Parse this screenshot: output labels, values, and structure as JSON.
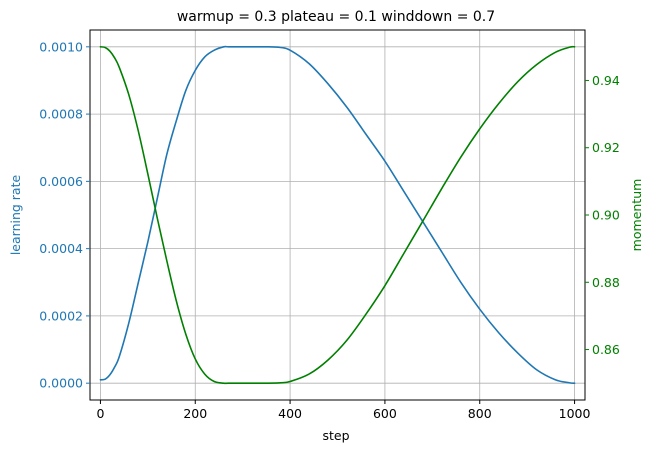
{
  "chart_data": {
    "type": "line",
    "title": "warmup = 0.3 plateau = 0.1 winddown = 0.7",
    "xlabel": "step",
    "ylabel_left": "learning rate",
    "ylabel_right": "momentum",
    "xlim": [
      -22,
      1022
    ],
    "ylim_left": [
      -5e-05,
      0.00105
    ],
    "ylim_right": [
      0.845,
      0.955
    ],
    "grid": true,
    "x_ticks": [
      0,
      200,
      400,
      600,
      800,
      1000
    ],
    "x_tick_labels": [
      "0",
      "200",
      "400",
      "600",
      "800",
      "1000"
    ],
    "left_ticks": [
      0.0,
      0.0002,
      0.0004,
      0.0006,
      0.0008,
      0.001
    ],
    "left_tick_labels": [
      "0.0000",
      "0.0002",
      "0.0004",
      "0.0006",
      "0.0008",
      "0.0010"
    ],
    "right_ticks": [
      0.86,
      0.88,
      0.9,
      0.92,
      0.94
    ],
    "right_tick_labels": [
      "0.86",
      "0.88",
      "0.90",
      "0.92",
      "0.94"
    ],
    "colors": {
      "learning_rate": "#1f77b4",
      "momentum": "#008000",
      "grid": "#b0b0b0",
      "axis": "#000000"
    },
    "series": [
      {
        "axis": "left",
        "x": [
          0,
          10,
          20,
          30,
          40,
          60,
          80,
          100,
          120,
          140,
          160,
          180,
          200,
          220,
          240,
          260,
          270,
          300,
          350,
          380,
          400,
          440,
          480,
          520,
          560,
          600,
          640,
          680,
          720,
          760,
          800,
          840,
          880,
          920,
          960,
          990,
          1000
        ],
        "y": [
          1e-05,
          1.2e-05,
          2.5e-05,
          4.8e-05,
          8e-05,
          0.00018,
          0.0003,
          0.00042,
          0.00055,
          0.00068,
          0.00078,
          0.00087,
          0.00093,
          0.00097,
          0.00099,
          0.001,
          0.001,
          0.001,
          0.001,
          0.000998,
          0.00099,
          0.00095,
          0.00089,
          0.00082,
          0.00074,
          0.00066,
          0.00057,
          0.00048,
          0.00039,
          0.0003,
          0.00022,
          0.00015,
          9e-05,
          4e-05,
          1e-05,
          1e-06,
          0.0
        ]
      },
      {
        "axis": "right",
        "x": [
          0,
          10,
          20,
          30,
          40,
          60,
          80,
          100,
          120,
          140,
          160,
          180,
          200,
          220,
          240,
          260,
          270,
          300,
          350,
          380,
          400,
          440,
          480,
          520,
          560,
          600,
          640,
          680,
          720,
          760,
          800,
          840,
          880,
          920,
          960,
          990,
          1000
        ],
        "y": [
          0.95,
          0.9498,
          0.9487,
          0.9467,
          0.9438,
          0.9357,
          0.9249,
          0.9122,
          0.899,
          0.8864,
          0.8745,
          0.8646,
          0.8572,
          0.8527,
          0.8505,
          0.85,
          0.85,
          0.85,
          0.85,
          0.8501,
          0.8505,
          0.8527,
          0.8569,
          0.8628,
          0.8705,
          0.879,
          0.8886,
          0.8982,
          0.9079,
          0.9172,
          0.9256,
          0.9331,
          0.9396,
          0.9447,
          0.9484,
          0.9499,
          0.95
        ]
      }
    ]
  }
}
